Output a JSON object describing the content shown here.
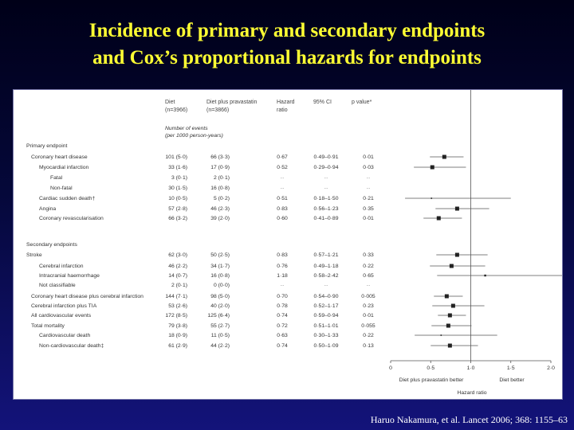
{
  "title_line1": "Incidence of primary and secondary endpoints",
  "title_line2": "and Cox’s proportional hazards for endpoints",
  "citation": "Haruo Nakamura, et al. Lancet 2006; 368: 1155–63",
  "headers": {
    "diet": "Diet",
    "diet_n": "(n=3966)",
    "prava": "Diet plus pravastatin",
    "prava_n": "(n=3866)",
    "hr1": "Hazard",
    "hr2": "ratio",
    "ci": "95% CI",
    "p": "p value*",
    "events1": "Number of events",
    "events2": "(per 1000 person-years)"
  },
  "sections": {
    "primary": "Primary endpoint",
    "secondary": "Secondary endpoints"
  },
  "rows": [
    {
      "label": "Coronary heart disease",
      "indent": 1,
      "diet": "101 (5·0)",
      "prava": "66 (3·3)",
      "hr": "0·67",
      "ci": "0·49–0·91",
      "p": "0·01",
      "est": 0.67,
      "lo": 0.49,
      "hi": 0.91
    },
    {
      "label": "Myocardial infarction",
      "indent": 2,
      "diet": "33 (1·6)",
      "prava": "17 (0·9)",
      "hr": "0·52",
      "ci": "0·29–0·94",
      "p": "0·03",
      "est": 0.52,
      "lo": 0.29,
      "hi": 0.94
    },
    {
      "label": "Fatal",
      "indent": 3,
      "diet": "3 (0·1)",
      "prava": "2 (0·1)",
      "hr": "··",
      "ci": "··",
      "p": "··"
    },
    {
      "label": "Non-fatal",
      "indent": 3,
      "diet": "30 (1·5)",
      "prava": "16 (0·8)",
      "hr": "··",
      "ci": "··",
      "p": "··"
    },
    {
      "label": "Cardiac sudden death†",
      "indent": 2,
      "diet": "10 (0·5)",
      "prava": "5 (0·2)",
      "hr": "0·51",
      "ci": "0·18–1·50",
      "p": "0·21",
      "est": 0.51,
      "lo": 0.18,
      "hi": 1.5
    },
    {
      "label": "Angina",
      "indent": 2,
      "diet": "57 (2·8)",
      "prava": "46 (2·3)",
      "hr": "0·83",
      "ci": "0·56–1·23",
      "p": "0·35",
      "est": 0.83,
      "lo": 0.56,
      "hi": 1.23
    },
    {
      "label": "Coronary revascularisation",
      "indent": 2,
      "diet": "66 (3·2)",
      "prava": "39 (2·0)",
      "hr": "0·60",
      "ci": "0·41–0·89",
      "p": "0·01",
      "est": 0.6,
      "lo": 0.41,
      "hi": 0.89
    },
    {
      "label": "Stroke",
      "indent": 0,
      "diet": "62 (3·0)",
      "prava": "50 (2·5)",
      "hr": "0·83",
      "ci": "0·57–1·21",
      "p": "0·33",
      "est": 0.83,
      "lo": 0.57,
      "hi": 1.21
    },
    {
      "label": "Cerebral infarction",
      "indent": 2,
      "diet": "46 (2·2)",
      "prava": "34 (1·7)",
      "hr": "0·76",
      "ci": "0·49–1·18",
      "p": "0·22",
      "est": 0.76,
      "lo": 0.49,
      "hi": 1.18
    },
    {
      "label": "Intracranial haemorrhage",
      "indent": 2,
      "diet": "14 (0·7)",
      "prava": "16 (0·8)",
      "hr": "1·18",
      "ci": "0·58–2·42",
      "p": "0·65",
      "est": 1.18,
      "lo": 0.58,
      "hi": 2.42
    },
    {
      "label": "Not classifiable",
      "indent": 2,
      "diet": "2 (0·1)",
      "prava": "0 (0·0)",
      "hr": "··",
      "ci": "··",
      "p": "··"
    },
    {
      "label": "Coronary heart disease plus cerebral infarction",
      "indent": 1,
      "diet": "144 (7·1)",
      "prava": "98 (5·0)",
      "hr": "0·70",
      "ci": "0·54–0·90",
      "p": "0·005",
      "est": 0.7,
      "lo": 0.54,
      "hi": 0.9
    },
    {
      "label": "Cerebral infarction plus TIA",
      "indent": 1,
      "diet": "53 (2·6)",
      "prava": "40 (2·0)",
      "hr": "0·78",
      "ci": "0·52–1·17",
      "p": "0·23",
      "est": 0.78,
      "lo": 0.52,
      "hi": 1.17
    },
    {
      "label": "All cardiovascular events",
      "indent": 1,
      "diet": "172 (8·5)",
      "prava": "125 (6·4)",
      "hr": "0·74",
      "ci": "0·59–0·94",
      "p": "0·01",
      "est": 0.74,
      "lo": 0.59,
      "hi": 0.94
    },
    {
      "label": "Total mortality",
      "indent": 1,
      "diet": "79 (3·8)",
      "prava": "55 (2·7)",
      "hr": "0·72",
      "ci": "0·51–1·01",
      "p": "0·055",
      "est": 0.72,
      "lo": 0.51,
      "hi": 1.01
    },
    {
      "label": "Cardiovascular death",
      "indent": 2,
      "diet": "18 (0·9)",
      "prava": "11 (0·5)",
      "hr": "0·63",
      "ci": "0·30–1·33",
      "p": "0·22",
      "est": 0.63,
      "lo": 0.3,
      "hi": 1.33
    },
    {
      "label": "Non-cardiovascular death‡",
      "indent": 2,
      "diet": "61 (2·9)",
      "prava": "44 (2·2)",
      "hr": "0·74",
      "ci": "0·50–1·09",
      "p": "0·13",
      "est": 0.74,
      "lo": 0.5,
      "hi": 1.09
    }
  ],
  "axis": {
    "ticks": [
      "0",
      "0·5",
      "1·0",
      "1·5",
      "2·0"
    ],
    "tick_values": [
      0,
      0.5,
      1.0,
      1.5,
      2.0
    ],
    "reference": 1.0,
    "label_left": "Diet plus pravastatin better",
    "label_right": "Diet better",
    "xlabel": "Hazard ratio"
  },
  "colors": {
    "title": "#ffff33",
    "marker": "#222222",
    "line": "#555555"
  }
}
